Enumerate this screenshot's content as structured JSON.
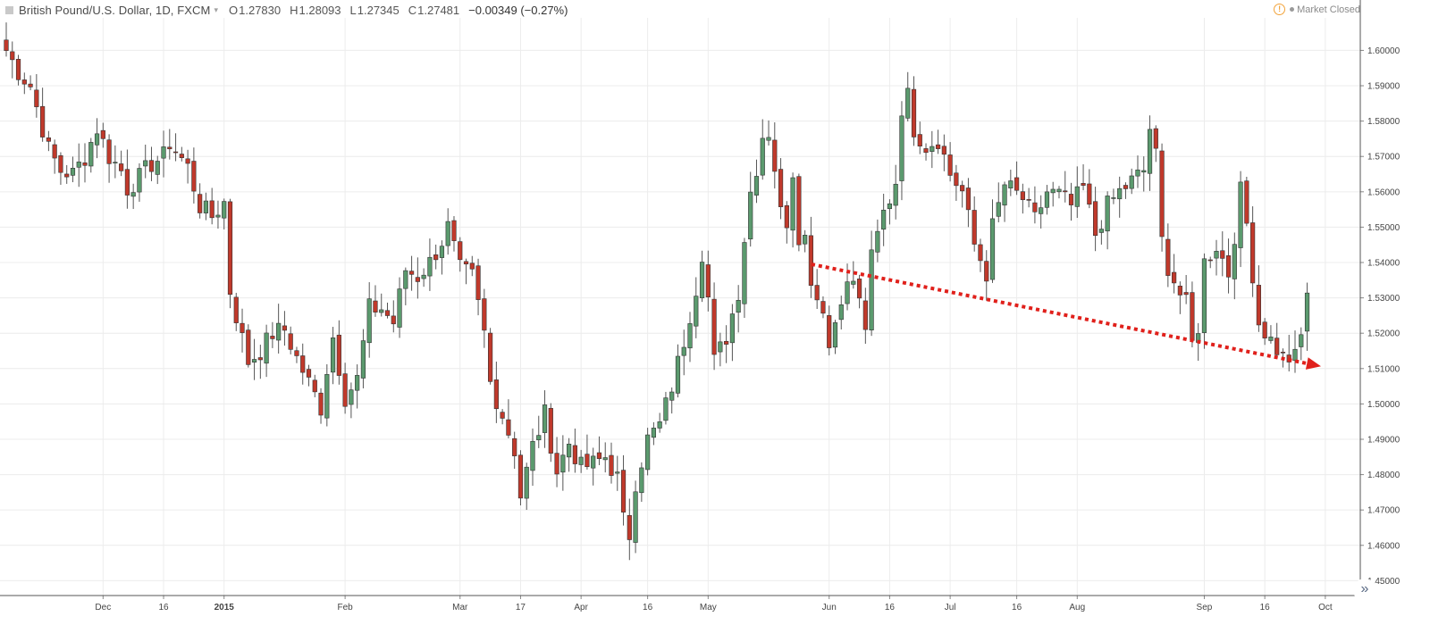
{
  "header": {
    "symbol": "British Pound/U.S. Dollar, 1D, FXCM",
    "ohlc": [
      {
        "key": "O",
        "value": "1.27830"
      },
      {
        "key": "H",
        "value": "1.28093"
      },
      {
        "key": "L",
        "value": "1.27345"
      },
      {
        "key": "C",
        "value": "1.27481"
      }
    ],
    "change": "−0.00349 (−0.27%)",
    "market_status": "Market Closed",
    "alert_glyph": "!"
  },
  "colors": {
    "up_candle": "#5b9a6e",
    "down_candle": "#c0392b",
    "wick": "#555555",
    "grid": "#ececec",
    "arrow": "#e0201b"
  },
  "icons": {
    "menu": "square-menu-icon",
    "alert": "alert-circle-icon",
    "scroll": "double-chevron-right-icon"
  },
  "scroll_button_glyph": "»",
  "chart_data": {
    "type": "candlestick",
    "title": "British Pound/U.S. Dollar, 1D, FXCM",
    "ylim": [
      1.4458,
      1.6092
    ],
    "y_ticks": [
      "1.60000",
      "1.59000",
      "1.58000",
      "1.57000",
      "1.56000",
      "1.55000",
      "1.54000",
      "1.53000",
      "1.52000",
      "1.51000",
      "1.50000",
      "1.49000",
      "1.48000",
      "1.47000",
      "1.46000",
      "1.45000"
    ],
    "x_ticks": [
      {
        "label": "Dec",
        "index": 16,
        "bold": false
      },
      {
        "label": "16",
        "index": 26,
        "bold": false
      },
      {
        "label": "2015",
        "index": 36,
        "bold": true
      },
      {
        "label": "Feb",
        "index": 56,
        "bold": false
      },
      {
        "label": "Mar",
        "index": 75,
        "bold": false
      },
      {
        "label": "17",
        "index": 85,
        "bold": false
      },
      {
        "label": "Apr",
        "index": 95,
        "bold": false
      },
      {
        "label": "16",
        "index": 106,
        "bold": false
      },
      {
        "label": "May",
        "index": 116,
        "bold": false
      },
      {
        "label": "Jun",
        "index": 136,
        "bold": false
      },
      {
        "label": "16",
        "index": 146,
        "bold": false
      },
      {
        "label": "Jul",
        "index": 156,
        "bold": false
      },
      {
        "label": "16",
        "index": 167,
        "bold": false
      },
      {
        "label": "Aug",
        "index": 177,
        "bold": false
      },
      {
        "label": "Sep",
        "index": 198,
        "bold": false
      },
      {
        "label": "16",
        "index": 208,
        "bold": false
      },
      {
        "label": "Oct",
        "index": 218,
        "bold": false
      }
    ],
    "anchors": [
      [
        0,
        1.6
      ],
      [
        2,
        1.594
      ],
      [
        4,
        1.59
      ],
      [
        7,
        1.572
      ],
      [
        9,
        1.566
      ],
      [
        11,
        1.565
      ],
      [
        13,
        1.57
      ],
      [
        15,
        1.578
      ],
      [
        17,
        1.57
      ],
      [
        19,
        1.566
      ],
      [
        20,
        1.561
      ],
      [
        22,
        1.564
      ],
      [
        24,
        1.568
      ],
      [
        26,
        1.57
      ],
      [
        27,
        1.574
      ],
      [
        30,
        1.567
      ],
      [
        32,
        1.556
      ],
      [
        34,
        1.553
      ],
      [
        36,
        1.557
      ],
      [
        37,
        1.532
      ],
      [
        38,
        1.525
      ],
      [
        40,
        1.512
      ],
      [
        42,
        1.515
      ],
      [
        44,
        1.52
      ],
      [
        46,
        1.521
      ],
      [
        48,
        1.513
      ],
      [
        50,
        1.506
      ],
      [
        52,
        1.499
      ],
      [
        53,
        1.51
      ],
      [
        54,
        1.519
      ],
      [
        56,
        1.502
      ],
      [
        58,
        1.507
      ],
      [
        59,
        1.517
      ],
      [
        60,
        1.527
      ],
      [
        62,
        1.527
      ],
      [
        64,
        1.523
      ],
      [
        66,
        1.538
      ],
      [
        68,
        1.536
      ],
      [
        70,
        1.54
      ],
      [
        72,
        1.546
      ],
      [
        73,
        1.55
      ],
      [
        75,
        1.538
      ],
      [
        77,
        1.536
      ],
      [
        79,
        1.52
      ],
      [
        80,
        1.506
      ],
      [
        82,
        1.497
      ],
      [
        84,
        1.487
      ],
      [
        85,
        1.474
      ],
      [
        87,
        1.488
      ],
      [
        89,
        1.497
      ],
      [
        91,
        1.481
      ],
      [
        93,
        1.489
      ],
      [
        95,
        1.482
      ],
      [
        97,
        1.483
      ],
      [
        99,
        1.485
      ],
      [
        101,
        1.479
      ],
      [
        102,
        1.467
      ],
      [
        103,
        1.463
      ],
      [
        104,
        1.478
      ],
      [
        106,
        1.49
      ],
      [
        108,
        1.494
      ],
      [
        110,
        1.505
      ],
      [
        112,
        1.518
      ],
      [
        114,
        1.533
      ],
      [
        115,
        1.543
      ],
      [
        116,
        1.53
      ],
      [
        117,
        1.512
      ],
      [
        119,
        1.519
      ],
      [
        121,
        1.532
      ],
      [
        122,
        1.547
      ],
      [
        123,
        1.56
      ],
      [
        124,
        1.567
      ],
      [
        125,
        1.576
      ],
      [
        126,
        1.577
      ],
      [
        127,
        1.567
      ],
      [
        128,
        1.554
      ],
      [
        129,
        1.552
      ],
      [
        130,
        1.566
      ],
      [
        131,
        1.548
      ],
      [
        132,
        1.547
      ],
      [
        133,
        1.536
      ],
      [
        134,
        1.53
      ],
      [
        135,
        1.528
      ],
      [
        136,
        1.516
      ],
      [
        138,
        1.531
      ],
      [
        140,
        1.535
      ],
      [
        142,
        1.522
      ],
      [
        143,
        1.541
      ],
      [
        145,
        1.554
      ],
      [
        146,
        1.558
      ],
      [
        147,
        1.563
      ],
      [
        148,
        1.584
      ],
      [
        149,
        1.587
      ],
      [
        150,
        1.578
      ],
      [
        152,
        1.573
      ],
      [
        154,
        1.575
      ],
      [
        156,
        1.565
      ],
      [
        158,
        1.56
      ],
      [
        160,
        1.545
      ],
      [
        162,
        1.537
      ],
      [
        163,
        1.55
      ],
      [
        165,
        1.562
      ],
      [
        168,
        1.558
      ],
      [
        170,
        1.552
      ],
      [
        172,
        1.56
      ],
      [
        174,
        1.559
      ],
      [
        176,
        1.556
      ],
      [
        178,
        1.561
      ],
      [
        180,
        1.548
      ],
      [
        182,
        1.556
      ],
      [
        184,
        1.56
      ],
      [
        186,
        1.563
      ],
      [
        188,
        1.566
      ],
      [
        189,
        1.578
      ],
      [
        190,
        1.57
      ],
      [
        191,
        1.546
      ],
      [
        192,
        1.539
      ],
      [
        194,
        1.531
      ],
      [
        195,
        1.528
      ],
      [
        196,
        1.517
      ],
      [
        197,
        1.522
      ],
      [
        198,
        1.54
      ],
      [
        200,
        1.545
      ],
      [
        202,
        1.537
      ],
      [
        203,
        1.548
      ],
      [
        204,
        1.56
      ],
      [
        205,
        1.551
      ],
      [
        206,
        1.537
      ],
      [
        207,
        1.523
      ],
      [
        209,
        1.518
      ],
      [
        211,
        1.513
      ],
      [
        213,
        1.513
      ],
      [
        214,
        1.519
      ],
      [
        215,
        1.532
      ]
    ]
  }
}
